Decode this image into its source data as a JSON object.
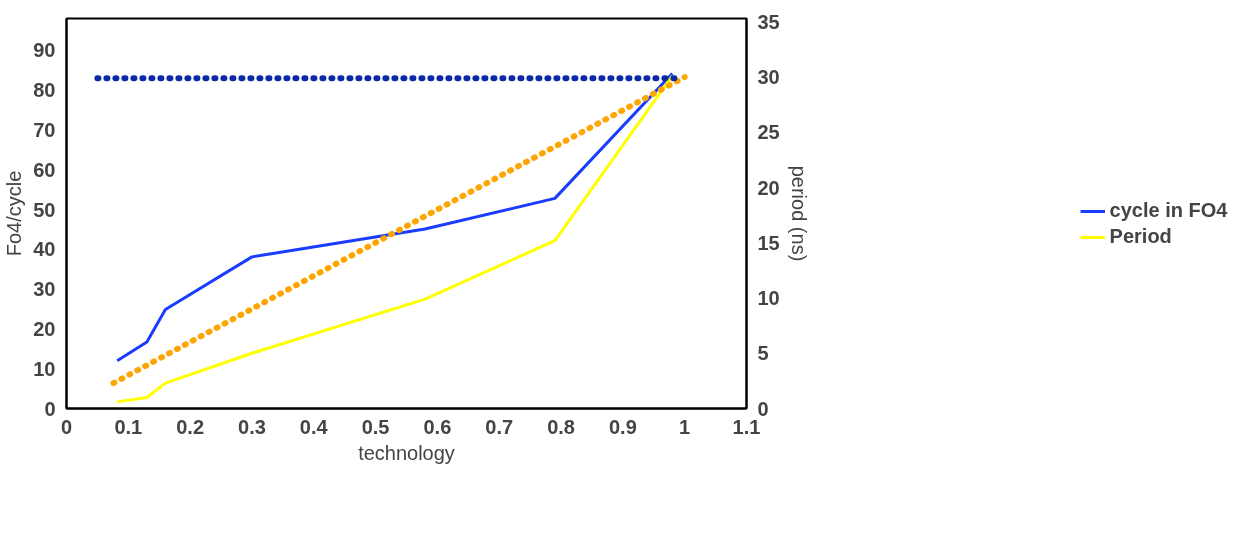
{
  "chart_data": {
    "type": "line",
    "xlabel": "technology",
    "ylabel": "Fo4/cycle",
    "y2label": "period (ns)",
    "xlim": [
      0,
      1.1
    ],
    "xticks": [
      0,
      0.1,
      0.2,
      0.3,
      0.4,
      0.5,
      0.6,
      0.7,
      0.8,
      0.9,
      1,
      1.1
    ],
    "ylim": [
      0,
      98
    ],
    "yticks": [
      0,
      10,
      20,
      30,
      40,
      50,
      60,
      70,
      80,
      90
    ],
    "y2lim": [
      0,
      35.3
    ],
    "y2ticks": [
      0,
      5,
      10,
      15,
      20,
      25,
      30,
      35
    ],
    "grid": false,
    "legend": "right",
    "series": [
      {
        "name": "cycle in FO4",
        "color": "#1a3cff",
        "x": [
          0.082,
          0.13,
          0.16,
          0.3,
          0.58,
          0.79,
          0.98
        ],
        "values": [
          12,
          16.7,
          24.9,
          38.1,
          45.1,
          52.8,
          84.2
        ]
      },
      {
        "name": "Period",
        "color": "#ffff00",
        "axis": "y2",
        "x": [
          0.082,
          0.13,
          0.16,
          0.3,
          0.58,
          0.79,
          0.98
        ],
        "values": [
          0.6,
          1.0,
          2.3,
          5.0,
          9.9,
          15.2,
          30.1
        ]
      },
      {
        "color": "#ffa500",
        "axis": "y2",
        "line_style": "dotted",
        "x": [
          0.076,
          1.0
        ],
        "values": [
          2.3,
          30.0
        ]
      },
      {
        "color": "#0a2aa8",
        "axis": "y2",
        "line_style": "dotted",
        "x": [
          0.05,
          0.99
        ],
        "values": [
          29.9,
          29.9
        ]
      }
    ]
  }
}
